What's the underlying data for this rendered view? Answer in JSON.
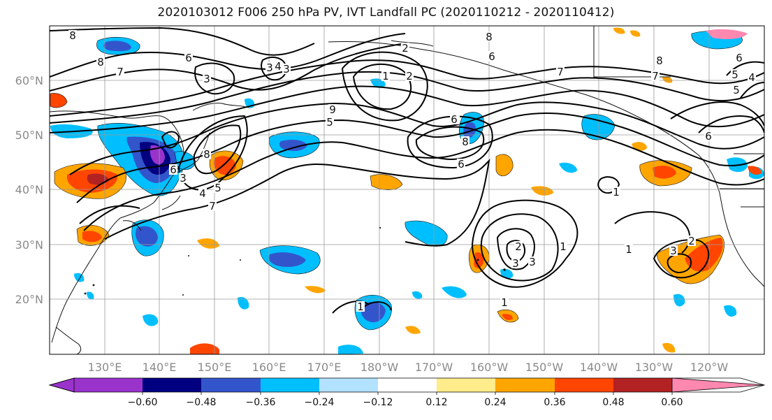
{
  "title": "2020103012 F006 250 hPa PV, IVT Landfall PC (2020110212 - 2020110412)",
  "lat_labels": [
    "60°N",
    "50°N",
    "40°N",
    "30°N",
    "20°N"
  ],
  "lon_labels": [
    "130°E",
    "140°E",
    "150°E",
    "160°E",
    "170°E",
    "180°W",
    "170°W",
    "160°W",
    "150°W",
    "140°W",
    "130°W",
    "120°W"
  ],
  "colorbar": {
    "colors": [
      "#9933cc",
      "#000080",
      "#3355cc",
      "#00bfff",
      "#b3e2ff",
      "#ffffff",
      "#ffec8b",
      "#ffa500",
      "#ff4500",
      "#b22222",
      "#ff88b0"
    ],
    "tick_labels": [
      "−0.60",
      "−0.48",
      "−0.36",
      "−0.24",
      "−0.12",
      "0.12",
      "0.24",
      "0.36",
      "0.48",
      "0.60"
    ]
  },
  "contour_labels": [
    "8",
    "8",
    "7",
    "6",
    "3",
    "4",
    "3",
    "1",
    "2",
    "8",
    "6",
    "7",
    "8",
    "6",
    "5",
    "9",
    "8",
    "3",
    "4",
    "5",
    "6",
    "7",
    "8",
    "6",
    "7",
    "5",
    "7",
    "6",
    "1",
    "2",
    "3",
    "1",
    "1",
    "2",
    "3",
    "3",
    "1",
    "4",
    "5",
    "6",
    "3",
    "2",
    "1"
  ]
}
